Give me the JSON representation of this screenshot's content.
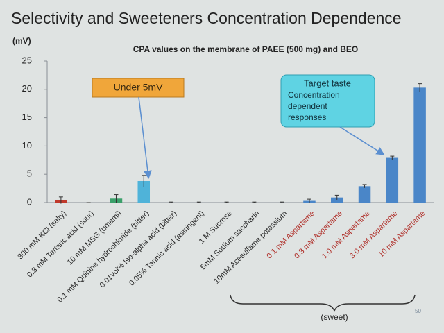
{
  "chart_data": {
    "type": "bar",
    "title": "Selectivity and Sweeteners Concentration Dependence",
    "subtitle": "CPA values on the membrane of PAEE (500 mg) and BEO",
    "y_label": "(mV)",
    "categories": [
      "300 mM KCl (salty)",
      "0.3 mM Tartaric acid (sour)",
      "10 mM MSG (umami)",
      "0.1 mM Quinine hydrochloride (bitter)",
      "0.01vol% Iso-alpha acid (bitter)",
      "0.05% Tannic acid (astringent)",
      "1 M Sucrose",
      "5mM Sodium saccharin",
      "10mM Acesulfame potassium",
      "0.1 mM Aspartame",
      "0.3 mM Aspartame",
      "1.0 mM Aspartame",
      "3.0 mM Aspartame",
      "10 mM Aspartame"
    ],
    "values": [
      0.4,
      0,
      0.7,
      3.8,
      0,
      0,
      0,
      0,
      0,
      0.3,
      0.9,
      2.9,
      7.9,
      20.3
    ],
    "errors": [
      0.6,
      0,
      0.7,
      1.0,
      0.1,
      0.1,
      0.1,
      0.1,
      0.1,
      0.3,
      0.4,
      0.3,
      0.3,
      0.7
    ],
    "colors": [
      "#c0392b",
      "#c0392b",
      "#3aa06a",
      "#4fb3d9",
      "#4a86c8",
      "#4a86c8",
      "#4a86c8",
      "#4a86c8",
      "#4a86c8",
      "#4a86c8",
      "#4a86c8",
      "#4a86c8",
      "#4a86c8",
      "#4a86c8"
    ],
    "label_colors": [
      "#2a2a2a",
      "#2a2a2a",
      "#2a2a2a",
      "#2a2a2a",
      "#2a2a2a",
      "#2a2a2a",
      "#2a2a2a",
      "#2a2a2a",
      "#2a2a2a",
      "#b0302a",
      "#b0302a",
      "#b0302a",
      "#b0302a",
      "#b0302a"
    ],
    "ylim": [
      0,
      25
    ],
    "yticks": [
      0,
      5,
      10,
      15,
      20,
      25
    ],
    "annotations": {
      "low": "Under 5mV",
      "target": "Target taste",
      "target_note": [
        "Concentration",
        "dependent",
        "responses"
      ],
      "group": "(sweet)"
    },
    "page_number": "50"
  }
}
